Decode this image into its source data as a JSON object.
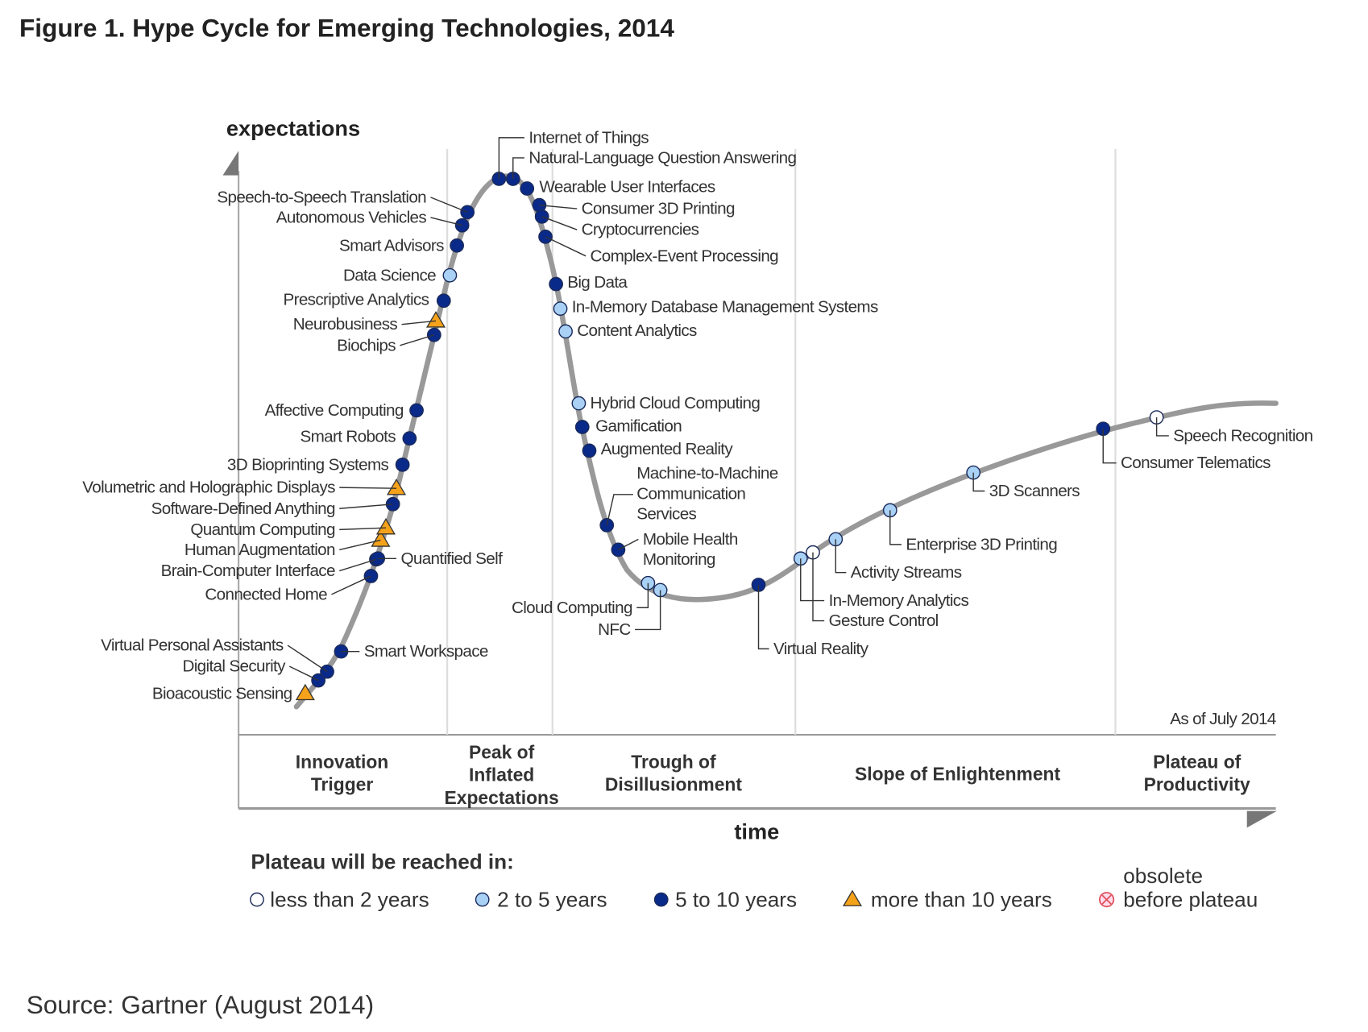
{
  "title": "Figure 1. Hype Cycle for Emerging Technologies, 2014",
  "source": "Source: Gartner (August 2014)",
  "chart_data": {
    "type": "hype-cycle",
    "ylabel": "expectations",
    "xlabel": "time",
    "as_of": "As of July 2014",
    "phases": [
      {
        "label_lines": [
          "Innovation",
          "Trigger"
        ]
      },
      {
        "label_lines": [
          "Peak of",
          "Inflated",
          "Expectations"
        ]
      },
      {
        "label_lines": [
          "Trough of",
          "Disillusionment"
        ]
      },
      {
        "label_lines": [
          "Slope of Enlightenment"
        ]
      },
      {
        "label_lines": [
          "Plateau of",
          "Productivity"
        ]
      }
    ],
    "legend": {
      "title": "Plateau will be reached in:",
      "items": [
        {
          "key": "lt2",
          "label_lines": [
            "less than 2 years"
          ],
          "marker": "circle",
          "color": "#ffffff"
        },
        {
          "key": "2to5",
          "label_lines": [
            "2 to 5 years"
          ],
          "marker": "circle",
          "color": "#a9d1f5"
        },
        {
          "key": "5to10",
          "label_lines": [
            "5 to 10 years"
          ],
          "marker": "circle",
          "color": "#0a2a8a"
        },
        {
          "key": "gt10",
          "label_lines": [
            "more than 10 years"
          ],
          "marker": "triangle",
          "color": "#f5a21b"
        },
        {
          "key": "obsolete",
          "label_lines": [
            "obsolete",
            "before plateau"
          ],
          "marker": "circle-x",
          "color": "#e0505a"
        }
      ]
    },
    "technologies": [
      {
        "label_lines": [
          "Bioacoustic Sensing"
        ],
        "plateau": "gt10",
        "phase": "Innovation Trigger"
      },
      {
        "label_lines": [
          "Digital Security"
        ],
        "plateau": "5to10",
        "phase": "Innovation Trigger"
      },
      {
        "label_lines": [
          "Virtual Personal Assistants"
        ],
        "plateau": "5to10",
        "phase": "Innovation Trigger"
      },
      {
        "label_lines": [
          "Smart Workspace"
        ],
        "plateau": "5to10",
        "phase": "Innovation Trigger"
      },
      {
        "label_lines": [
          "Connected Home"
        ],
        "plateau": "5to10",
        "phase": "Innovation Trigger"
      },
      {
        "label_lines": [
          "Brain-Computer Interface"
        ],
        "plateau": "5to10",
        "phase": "Innovation Trigger"
      },
      {
        "label_lines": [
          "Quantified Self"
        ],
        "plateau": "5to10",
        "phase": "Innovation Trigger"
      },
      {
        "label_lines": [
          "Human Augmentation"
        ],
        "plateau": "gt10",
        "phase": "Innovation Trigger"
      },
      {
        "label_lines": [
          "Quantum Computing"
        ],
        "plateau": "gt10",
        "phase": "Innovation Trigger"
      },
      {
        "label_lines": [
          "Software-Defined Anything"
        ],
        "plateau": "5to10",
        "phase": "Innovation Trigger"
      },
      {
        "label_lines": [
          "Volumetric and Holographic Displays"
        ],
        "plateau": "gt10",
        "phase": "Innovation Trigger"
      },
      {
        "label_lines": [
          "3D Bioprinting Systems"
        ],
        "plateau": "5to10",
        "phase": "Innovation Trigger"
      },
      {
        "label_lines": [
          "Smart Robots"
        ],
        "plateau": "5to10",
        "phase": "Innovation Trigger"
      },
      {
        "label_lines": [
          "Affective  Computing"
        ],
        "plateau": "5to10",
        "phase": "Innovation Trigger"
      },
      {
        "label_lines": [
          "Biochips"
        ],
        "plateau": "5to10",
        "phase": "Innovation Trigger"
      },
      {
        "label_lines": [
          "Neurobusiness"
        ],
        "plateau": "gt10",
        "phase": "Innovation Trigger"
      },
      {
        "label_lines": [
          "Prescriptive Analytics"
        ],
        "plateau": "5to10",
        "phase": "Innovation Trigger"
      },
      {
        "label_lines": [
          "Data Science"
        ],
        "plateau": "2to5",
        "phase": "Innovation Trigger"
      },
      {
        "label_lines": [
          "Smart Advisors"
        ],
        "plateau": "5to10",
        "phase": "Innovation Trigger"
      },
      {
        "label_lines": [
          "Autonomous Vehicles"
        ],
        "plateau": "5to10",
        "phase": "Peak of Inflated Expectations"
      },
      {
        "label_lines": [
          "Speech-to-Speech Translation"
        ],
        "plateau": "5to10",
        "phase": "Peak of Inflated Expectations"
      },
      {
        "label_lines": [
          "Internet of Things"
        ],
        "plateau": "5to10",
        "phase": "Peak of Inflated Expectations"
      },
      {
        "label_lines": [
          "Natural-Language Question Answering"
        ],
        "plateau": "5to10",
        "phase": "Peak of Inflated Expectations"
      },
      {
        "label_lines": [
          "Wearable User Interfaces"
        ],
        "plateau": "5to10",
        "phase": "Peak of Inflated Expectations"
      },
      {
        "label_lines": [
          "Consumer 3D Printing"
        ],
        "plateau": "5to10",
        "phase": "Peak of Inflated Expectations"
      },
      {
        "label_lines": [
          "Cryptocurrencies"
        ],
        "plateau": "5to10",
        "phase": "Peak of Inflated Expectations"
      },
      {
        "label_lines": [
          "Complex-Event Processing"
        ],
        "plateau": "5to10",
        "phase": "Peak of Inflated Expectations"
      },
      {
        "label_lines": [
          "Big Data"
        ],
        "plateau": "5to10",
        "phase": "Trough of Disillusionment"
      },
      {
        "label_lines": [
          "In-Memory Database Management Systems"
        ],
        "plateau": "2to5",
        "phase": "Trough of Disillusionment"
      },
      {
        "label_lines": [
          "Content Analytics"
        ],
        "plateau": "2to5",
        "phase": "Trough of Disillusionment"
      },
      {
        "label_lines": [
          "Hybrid Cloud Computing"
        ],
        "plateau": "2to5",
        "phase": "Trough of Disillusionment"
      },
      {
        "label_lines": [
          "Gamification"
        ],
        "plateau": "5to10",
        "phase": "Trough of Disillusionment"
      },
      {
        "label_lines": [
          "Augmented Reality"
        ],
        "plateau": "5to10",
        "phase": "Trough of Disillusionment"
      },
      {
        "label_lines": [
          "Machine-to-Machine",
          "Communication",
          "Services"
        ],
        "plateau": "5to10",
        "phase": "Trough of Disillusionment"
      },
      {
        "label_lines": [
          "Mobile Health",
          "Monitoring"
        ],
        "plateau": "5to10",
        "phase": "Trough of Disillusionment"
      },
      {
        "label_lines": [
          "Cloud Computing"
        ],
        "plateau": "2to5",
        "phase": "Trough of Disillusionment"
      },
      {
        "label_lines": [
          "NFC"
        ],
        "plateau": "2to5",
        "phase": "Trough of Disillusionment"
      },
      {
        "label_lines": [
          "Virtual Reality"
        ],
        "plateau": "5to10",
        "phase": "Trough of Disillusionment"
      },
      {
        "label_lines": [
          "In-Memory Analytics"
        ],
        "plateau": "2to5",
        "phase": "Slope of Enlightenment"
      },
      {
        "label_lines": [
          "Gesture Control"
        ],
        "plateau": "lt2",
        "phase": "Slope of Enlightenment"
      },
      {
        "label_lines": [
          "Activity  Streams"
        ],
        "plateau": "2to5",
        "phase": "Slope of Enlightenment"
      },
      {
        "label_lines": [
          "Enterprise 3D Printing"
        ],
        "plateau": "2to5",
        "phase": "Slope of Enlightenment"
      },
      {
        "label_lines": [
          "3D Scanners"
        ],
        "plateau": "2to5",
        "phase": "Slope of Enlightenment"
      },
      {
        "label_lines": [
          "Consumer Telematics"
        ],
        "plateau": "5to10",
        "phase": "Slope of Enlightenment"
      },
      {
        "label_lines": [
          "Speech Recognition"
        ],
        "plateau": "lt2",
        "phase": "Slope of Enlightenment"
      }
    ]
  }
}
